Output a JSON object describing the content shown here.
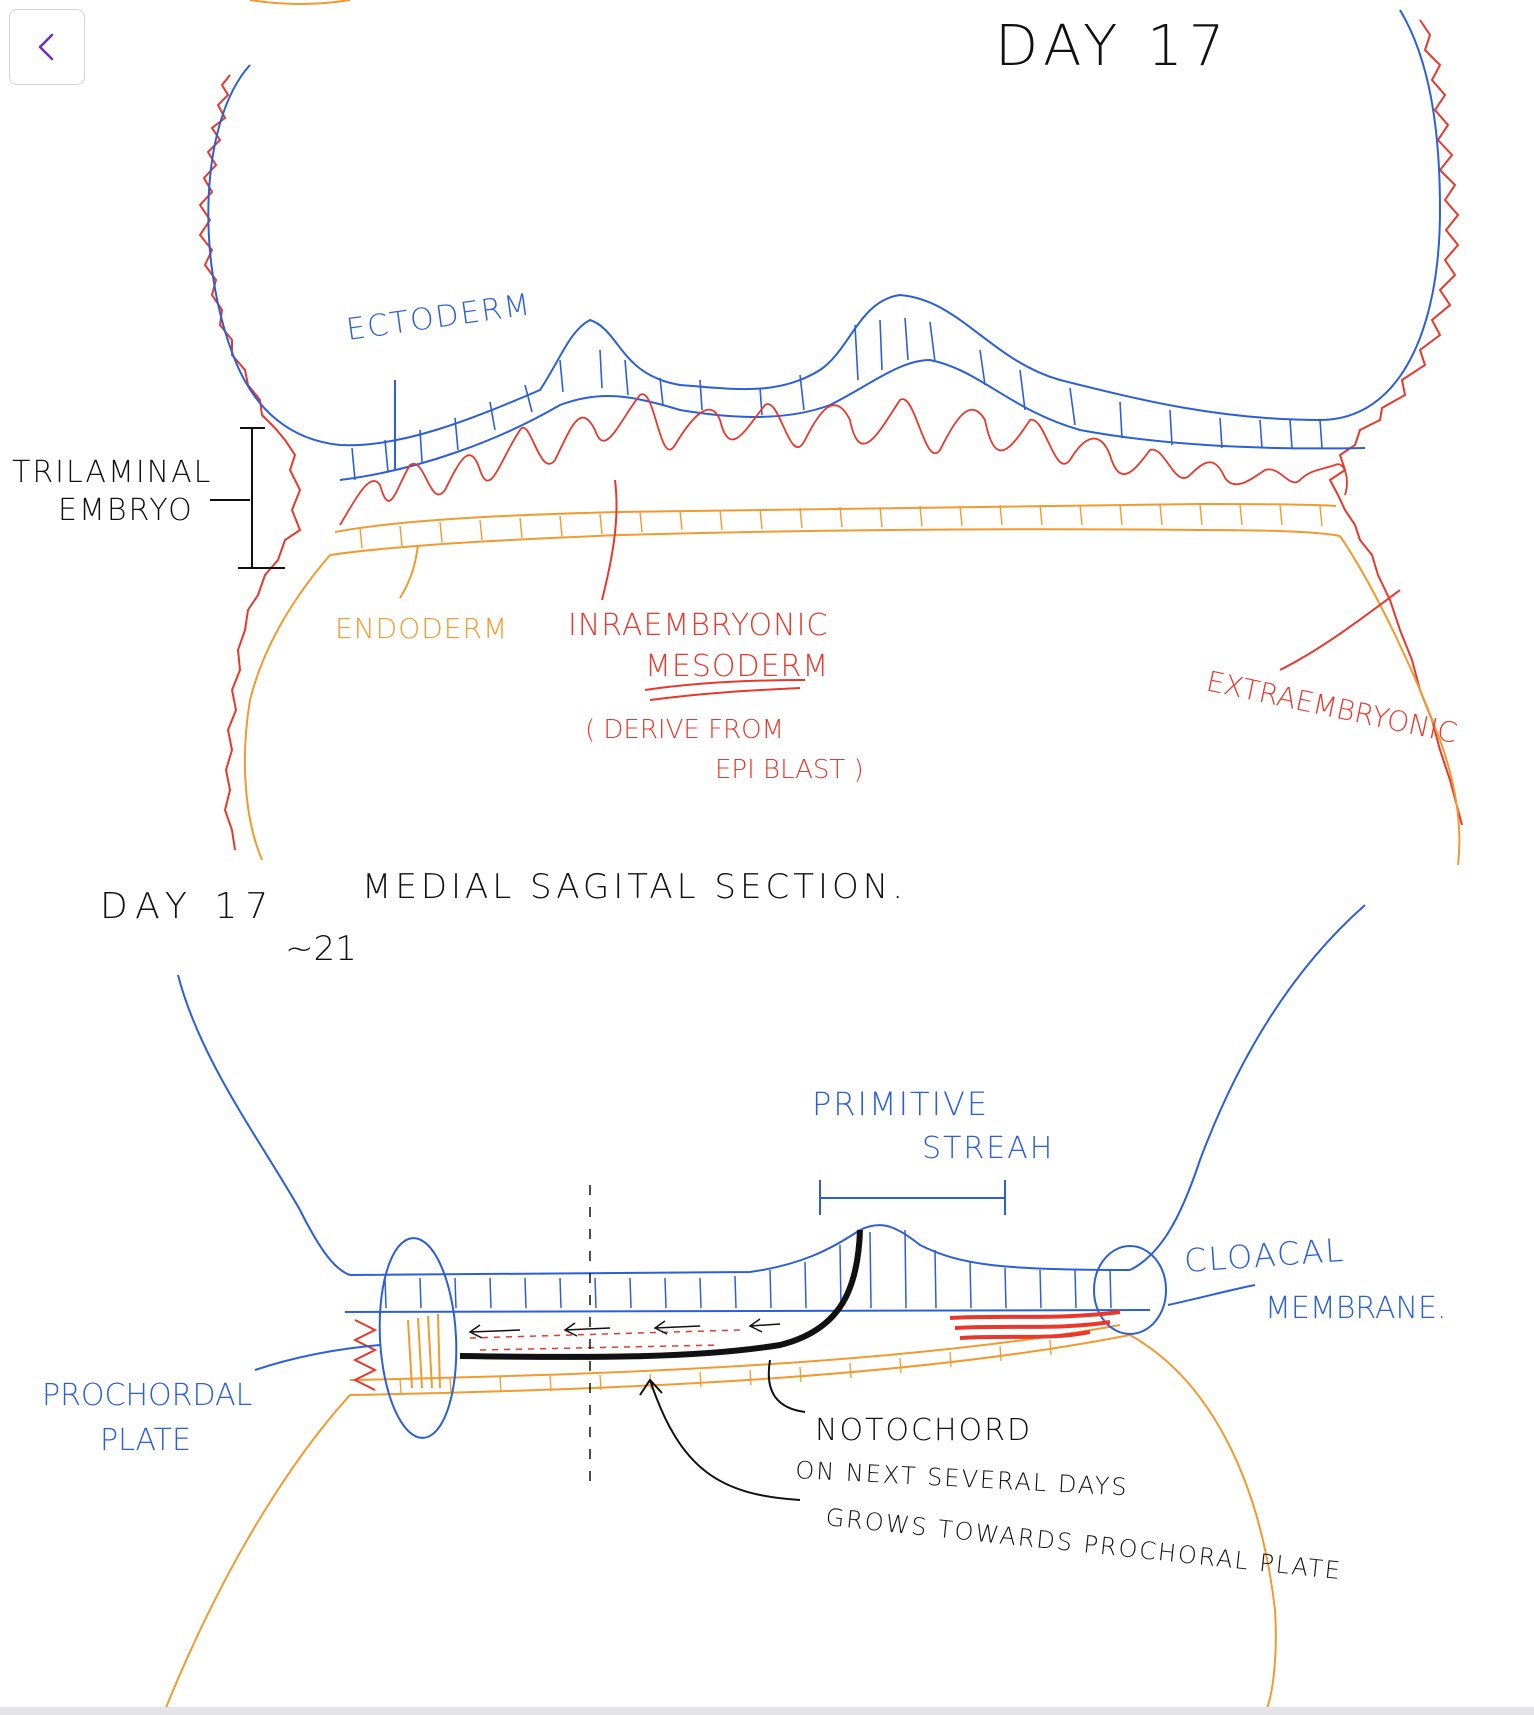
{
  "toolbar": {
    "back_icon": "chevron-left-icon",
    "accent": "#6b2fb3"
  },
  "colors": {
    "blue": "#2b5fd9",
    "red": "#e8382c",
    "orange": "#f29a2e",
    "black": "#111111"
  },
  "top_diagram": {
    "title": "DAY 17",
    "ectoderm": "ECTODERM",
    "trilaminar_line1": "TRILAMINAL",
    "trilaminar_line2": "EMBRYO",
    "endoderm": "ENDODERM",
    "intra_line1": "INRAEMBRYONIC",
    "intra_line2": "MESODERM",
    "derive_line1": "( DERIVE FROM",
    "derive_line2": "EPI BLAST )",
    "extra": "EXTRAEMBRYONIC"
  },
  "bottom_diagram": {
    "title_day": "DAY 17",
    "title_range": "~21",
    "title_section": "MEDIAL SAGITAL SECTION.",
    "primitive_line1": "PRIMITIVE",
    "primitive_line2": "STREAH",
    "cloacal_line1": "CLOACAL",
    "cloacal_line2": "MEMBRANE.",
    "prochordal_line1": "PROCHORDAL",
    "prochordal_line2": "PLATE",
    "notochord": "NOTOCHORD",
    "note_line1": "ON NEXT SEVERAL DAYS",
    "note_line2": "GROWS TOWARDS PROCHORAL PLATE"
  }
}
